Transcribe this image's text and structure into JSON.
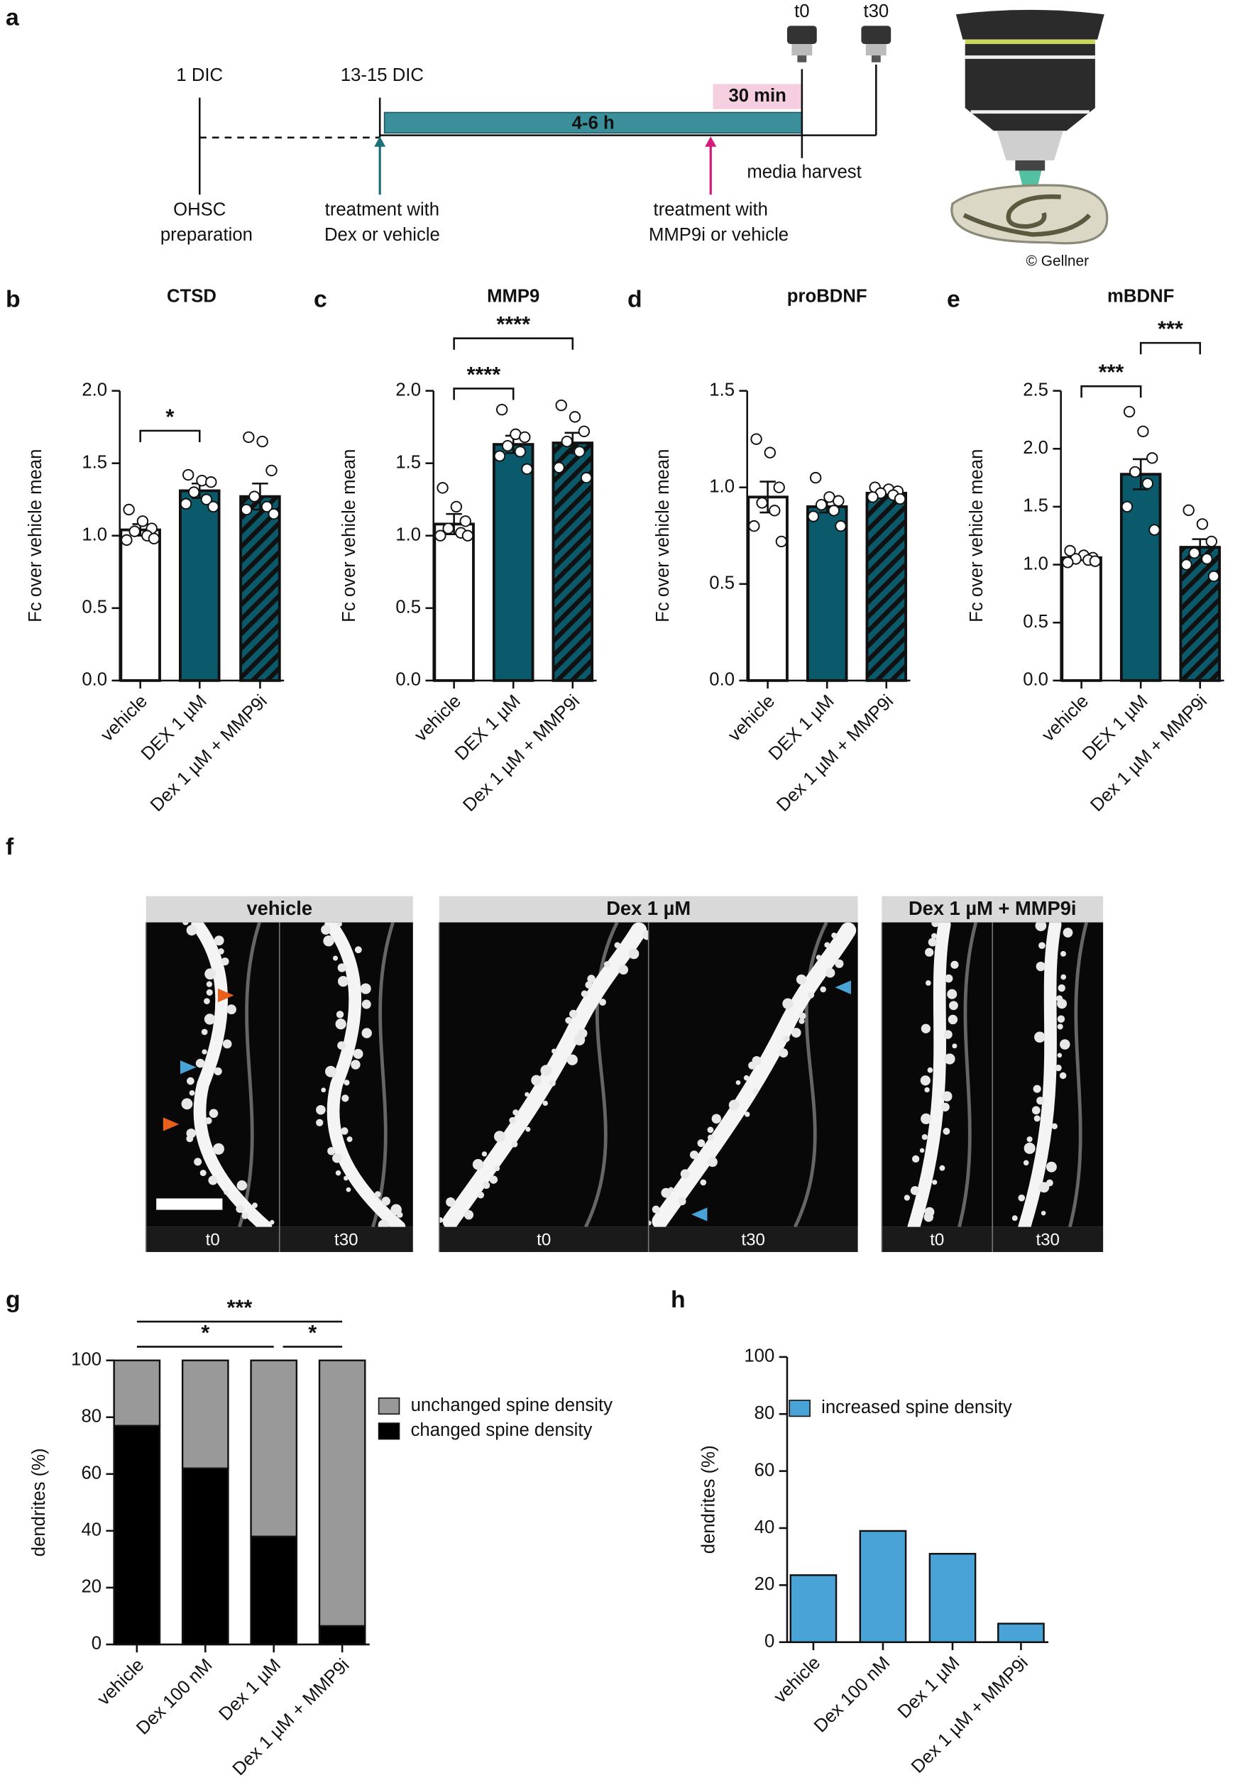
{
  "diagram": {
    "panel": "a",
    "day1": "1 DIC",
    "day13": "13-15 DIC",
    "t0": "t0",
    "t30": "t30",
    "window": "30 min",
    "incubation": "4-6 h",
    "harvest": "media harvest",
    "preparation": [
      "OHSC",
      "preparation"
    ],
    "treatment1": [
      "treatment with",
      "Dex or vehicle"
    ],
    "treatment2": [
      "treatment with",
      "MMP9i or vehicle"
    ],
    "credit": "© Gellner"
  },
  "images": {
    "panel": "f",
    "groups": [
      {
        "label": "vehicle",
        "frames": [
          "t0",
          "t30"
        ]
      },
      {
        "label": "Dex 1 µM",
        "frames": [
          "t0",
          "t30"
        ]
      },
      {
        "label": "Dex 1 µM + MMP9i",
        "frames": [
          "t0",
          "t30"
        ]
      }
    ]
  },
  "chart_data": [
    {
      "type": "bar",
      "panel": "b",
      "title": "CTSD",
      "y_label": "Fc over vehicle mean",
      "categories": [
        "vehicle",
        "DEX 1 µM",
        "Dex 1 µM + MMP9i"
      ],
      "values": [
        1.04,
        1.31,
        1.27
      ],
      "errors": [
        0.04,
        0.05,
        0.09
      ],
      "points": [
        [
          1.18,
          1.1,
          1.05,
          1.03,
          1.0,
          0.97,
          0.98
        ],
        [
          1.42,
          1.38,
          1.37,
          1.3,
          1.25,
          1.22,
          1.2
        ],
        [
          1.68,
          1.65,
          1.45,
          1.27,
          1.2,
          1.18,
          1.15
        ]
      ],
      "colors": [
        "#ffffff",
        "#0b5a6b",
        "#0b5a6b"
      ],
      "hatch": [
        false,
        false,
        true
      ],
      "ylim": [
        0,
        2
      ],
      "yticks": [
        {
          "value": 0,
          "label": "0.0"
        },
        0.5,
        {
          "value": 1,
          "label": "1.0"
        },
        1.5,
        {
          "value": 2,
          "label": "2.0"
        }
      ],
      "comparisons": [
        {
          "label": "*",
          "groups": [
            0,
            1
          ]
        }
      ]
    },
    {
      "type": "bar",
      "panel": "c",
      "title": "MMP9",
      "y_label": "Fc over vehicle mean",
      "categories": [
        "vehicle",
        "DEX 1 µM",
        "Dex 1 µM + MMP9i"
      ],
      "values": [
        1.08,
        1.63,
        1.64
      ],
      "errors": [
        0.07,
        0.06,
        0.07
      ],
      "points": [
        [
          1.33,
          1.2,
          1.1,
          1.05,
          1.02,
          1.0,
          1.0
        ],
        [
          1.87,
          1.7,
          1.68,
          1.62,
          1.58,
          1.55,
          1.46
        ],
        [
          1.9,
          1.82,
          1.72,
          1.65,
          1.58,
          1.47,
          1.4
        ]
      ],
      "colors": [
        "#ffffff",
        "#0b5a6b",
        "#0b5a6b"
      ],
      "hatch": [
        false,
        false,
        true
      ],
      "ylim": [
        0,
        2
      ],
      "yticks": [
        {
          "value": 0,
          "label": "0.0"
        },
        0.5,
        {
          "value": 1,
          "label": "1.0"
        },
        1.5,
        {
          "value": 2,
          "label": "2.0"
        }
      ],
      "comparisons": [
        {
          "label": "****",
          "groups": [
            0,
            1
          ]
        },
        {
          "label": "****",
          "groups": [
            0,
            2
          ]
        }
      ]
    },
    {
      "type": "bar",
      "panel": "d",
      "title": "proBDNF",
      "y_label": "Fc over vehicle mean",
      "categories": [
        "vehicle",
        "DEX 1 µM",
        "Dex 1 µM + MMP9i"
      ],
      "values": [
        0.95,
        0.9,
        0.97
      ],
      "errors": [
        0.08,
        0.03,
        0.02
      ],
      "points": [
        [
          1.25,
          1.18,
          1.0,
          0.92,
          0.88,
          0.8,
          0.72
        ],
        [
          1.05,
          0.95,
          0.93,
          0.91,
          0.88,
          0.85,
          0.8
        ],
        [
          1.0,
          0.99,
          0.98,
          0.97,
          0.96,
          0.95,
          0.94
        ]
      ],
      "colors": [
        "#ffffff",
        "#0b5a6b",
        "#0b5a6b"
      ],
      "hatch": [
        false,
        false,
        true
      ],
      "ylim": [
        0,
        1.5
      ],
      "yticks": [
        {
          "value": 0,
          "label": "0.0"
        },
        0.5,
        {
          "value": 1,
          "label": "1.0"
        },
        1.5
      ],
      "comparisons": []
    },
    {
      "type": "bar",
      "panel": "e",
      "title": "mBDNF",
      "y_label": "Fc over vehicle mean",
      "categories": [
        "vehicle",
        "DEX 1 µM",
        "Dex 1 µM + MMP9i"
      ],
      "values": [
        1.06,
        1.78,
        1.15
      ],
      "errors": [
        0.02,
        0.13,
        0.07
      ],
      "points": [
        [
          1.12,
          1.08,
          1.06,
          1.05,
          1.04,
          1.02,
          1.03
        ],
        [
          2.32,
          2.15,
          1.92,
          1.8,
          1.7,
          1.5,
          1.3
        ],
        [
          1.47,
          1.35,
          1.2,
          1.1,
          1.05,
          1.0,
          0.9
        ]
      ],
      "colors": [
        "#ffffff",
        "#0b5a6b",
        "#0b5a6b"
      ],
      "hatch": [
        false,
        false,
        true
      ],
      "ylim": [
        0,
        2.5
      ],
      "yticks": [
        {
          "value": 0,
          "label": "0.0"
        },
        0.5,
        {
          "value": 1,
          "label": "1.0"
        },
        1.5,
        {
          "value": 2,
          "label": "2.0"
        },
        2.5
      ],
      "comparisons": [
        {
          "label": "***",
          "groups": [
            0,
            1
          ]
        },
        {
          "label": "***",
          "groups": [
            1,
            2
          ]
        }
      ]
    },
    {
      "type": "stacked_bar",
      "panel": "g",
      "y_label": "dendrites (%)",
      "categories": [
        "vehicle",
        "Dex 100 nM",
        "Dex 1 µM",
        "Dex 1 µM + MMP9i"
      ],
      "series": [
        {
          "name": "changed spine density",
          "color": "#000000",
          "values": [
            77,
            62,
            38,
            6.5
          ]
        },
        {
          "name": "unchanged spine density",
          "color": "#999999",
          "values": [
            23,
            38,
            62,
            93.5
          ]
        }
      ],
      "ylim": [
        0,
        100
      ],
      "yticks": [
        0,
        20,
        40,
        60,
        80,
        100
      ],
      "comparisons": [
        {
          "label": "***",
          "groups": [
            0,
            3
          ]
        },
        {
          "label": "*",
          "groups": [
            0,
            2
          ]
        },
        {
          "label": "*",
          "groups": [
            2,
            3
          ]
        }
      ]
    },
    {
      "type": "bar",
      "panel": "h",
      "y_label": "dendrites (%)",
      "categories": [
        "vehicle",
        "Dex 100 nM",
        "Dex 1 µM",
        "Dex 1 µM + MMP9i"
      ],
      "series": [
        {
          "name": "increased spine density",
          "color": "#4aa3d6",
          "values": [
            23.5,
            39,
            31,
            6.5
          ]
        }
      ],
      "ylim": [
        0,
        100
      ],
      "yticks": [
        0,
        20,
        40,
        60,
        80,
        100
      ],
      "comparisons": []
    }
  ]
}
